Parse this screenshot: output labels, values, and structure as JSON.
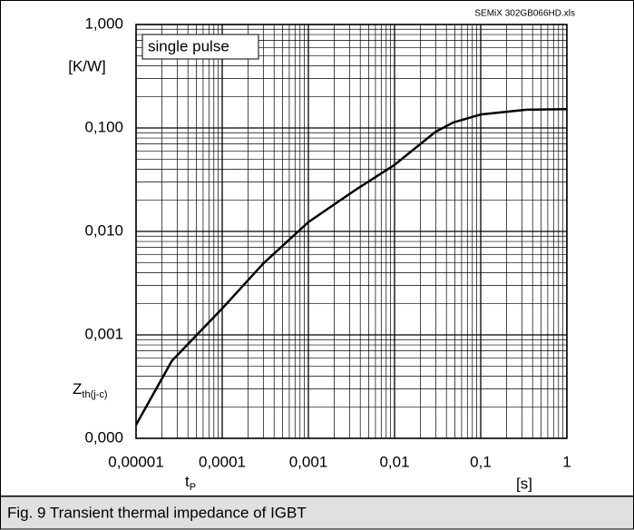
{
  "chart_data": {
    "type": "line",
    "title": "Fig. 9 Transient thermal impedance of IGBT",
    "source": "SEMiX 302GB066HD.xls",
    "annotation": "single pulse",
    "y_unit": "[K/W]",
    "y_label": {
      "main": "Z",
      "sub": "th(j-c)"
    },
    "x_label": {
      "main": "t",
      "sub": "P"
    },
    "x_unit": "[s]",
    "x_log": true,
    "y_log": true,
    "grid": true,
    "minor_grid": true,
    "x": [
      1e-05,
      2.6e-05,
      0.0001,
      0.0003,
      0.001,
      0.0034,
      0.01,
      0.03,
      0.048,
      0.1,
      0.34,
      1
    ],
    "series": [
      {
        "color": "#000000",
        "values": [
          0.000135,
          0.00056,
          0.0018,
          0.0049,
          0.0123,
          0.0247,
          0.044,
          0.092,
          0.113,
          0.135,
          0.15,
          0.152
        ]
      }
    ],
    "xlim": [
      1e-05,
      1
    ],
    "ylim": [
      0.0001,
      1
    ],
    "xticks": [
      {
        "value": 1e-05,
        "label": "0,00001"
      },
      {
        "value": 0.0001,
        "label": "0,0001"
      },
      {
        "value": 0.001,
        "label": "0,001"
      },
      {
        "value": 0.01,
        "label": "0,01"
      },
      {
        "value": 0.1,
        "label": "0,1"
      },
      1
    ],
    "yticks": [
      {
        "value": 0.0001,
        "label": "0,000"
      },
      {
        "value": 0.001,
        "label": "0,001"
      },
      {
        "value": 0.01,
        "label": "0,010"
      },
      {
        "value": 0.1,
        "label": "0,100"
      },
      {
        "value": 1,
        "label": "1,000"
      }
    ]
  }
}
